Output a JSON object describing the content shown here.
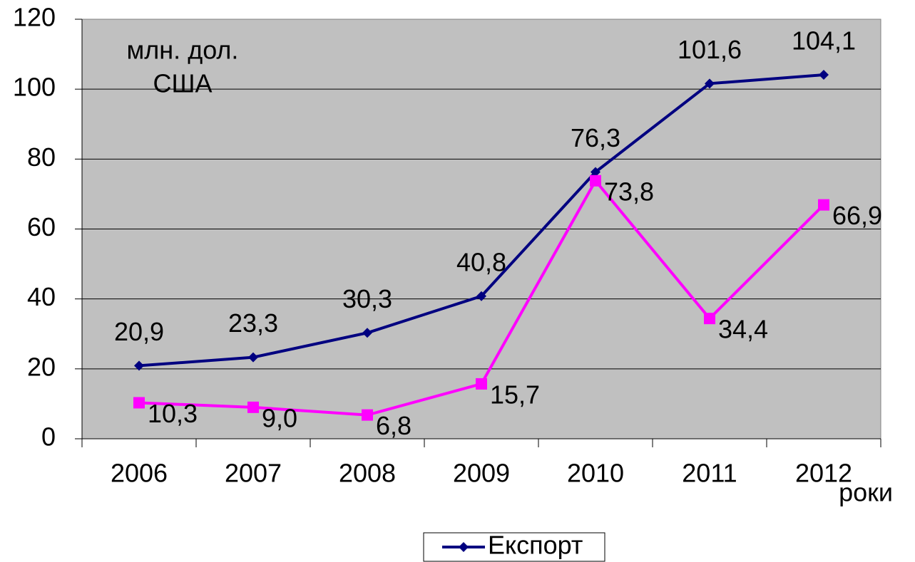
{
  "chart_data": {
    "type": "line",
    "ylabel": [
      "млн. дол.",
      "США"
    ],
    "xlabel": "роки",
    "categories": [
      "2006",
      "2007",
      "2008",
      "2009",
      "2010",
      "2011",
      "2012"
    ],
    "series": [
      {
        "name": "Експорт",
        "color": "#000080",
        "marker": "diamond",
        "values": [
          20.9,
          23.3,
          30.3,
          40.8,
          76.3,
          101.6,
          104.1
        ],
        "value_labels": [
          "20,9",
          "23,3",
          "30,3",
          "40,8",
          "76,3",
          "101,6",
          "104,1"
        ]
      },
      {
        "color": "#ff00ff",
        "marker": "square",
        "values": [
          10.3,
          9.0,
          6.8,
          15.7,
          73.8,
          34.4,
          66.9
        ],
        "value_labels": [
          "10,3",
          "9,0",
          "6,8",
          "15,7",
          "73,8",
          "34,4",
          "66,9"
        ]
      }
    ],
    "ylim": [
      0,
      120
    ],
    "yticks": [
      0,
      20,
      40,
      60,
      80,
      100,
      120
    ],
    "grid": true,
    "legend": "bottom"
  }
}
